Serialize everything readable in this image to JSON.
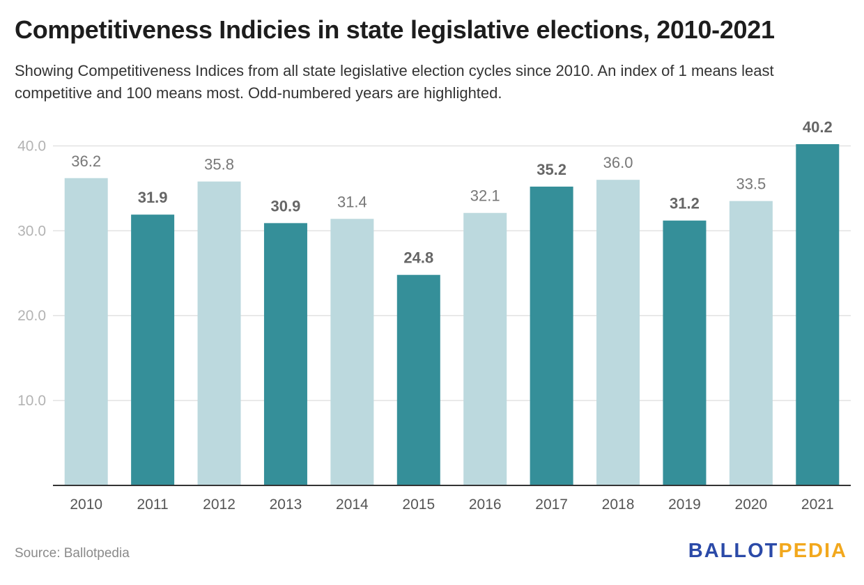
{
  "header": {
    "title": "Competitiveness Indicies in state legislative elections, 2010-2021",
    "subtitle": "Showing Competitiveness Indices from all state legislative election cycles since 2010. An index of 1 means least competitive and 100 means most. Odd-numbered years are highlighted."
  },
  "footer": {
    "source": "Source: Ballotpedia",
    "logo_part1": "BALLOT",
    "logo_part2": "PEDIA"
  },
  "colors": {
    "even_year_bar": "#bcd9de",
    "odd_year_bar": "#358f99",
    "logo_blue": "#2b4aa8",
    "logo_gold": "#f2a81d"
  },
  "chart_data": {
    "type": "bar",
    "categories": [
      "2010",
      "2011",
      "2012",
      "2013",
      "2014",
      "2015",
      "2016",
      "2017",
      "2018",
      "2019",
      "2020",
      "2021"
    ],
    "values": [
      36.2,
      31.9,
      35.8,
      30.9,
      31.4,
      24.8,
      32.1,
      35.2,
      36.0,
      31.2,
      33.5,
      40.2
    ],
    "value_labels": [
      "36.2",
      "31.9",
      "35.8",
      "30.9",
      "31.4",
      "24.8",
      "32.1",
      "35.2",
      "36.0",
      "31.2",
      "33.5",
      "40.2"
    ],
    "highlighted": [
      false,
      true,
      false,
      true,
      false,
      true,
      false,
      true,
      false,
      true,
      false,
      true
    ],
    "y_ticks": [
      10,
      20,
      30,
      40
    ],
    "y_tick_labels": [
      "10.0",
      "20.0",
      "30.0",
      "40.0"
    ],
    "ylim": [
      0,
      40.2
    ],
    "grid": true,
    "title": "Competitiveness Indicies in state legislative elections, 2010-2021",
    "xlabel": "",
    "ylabel": ""
  }
}
